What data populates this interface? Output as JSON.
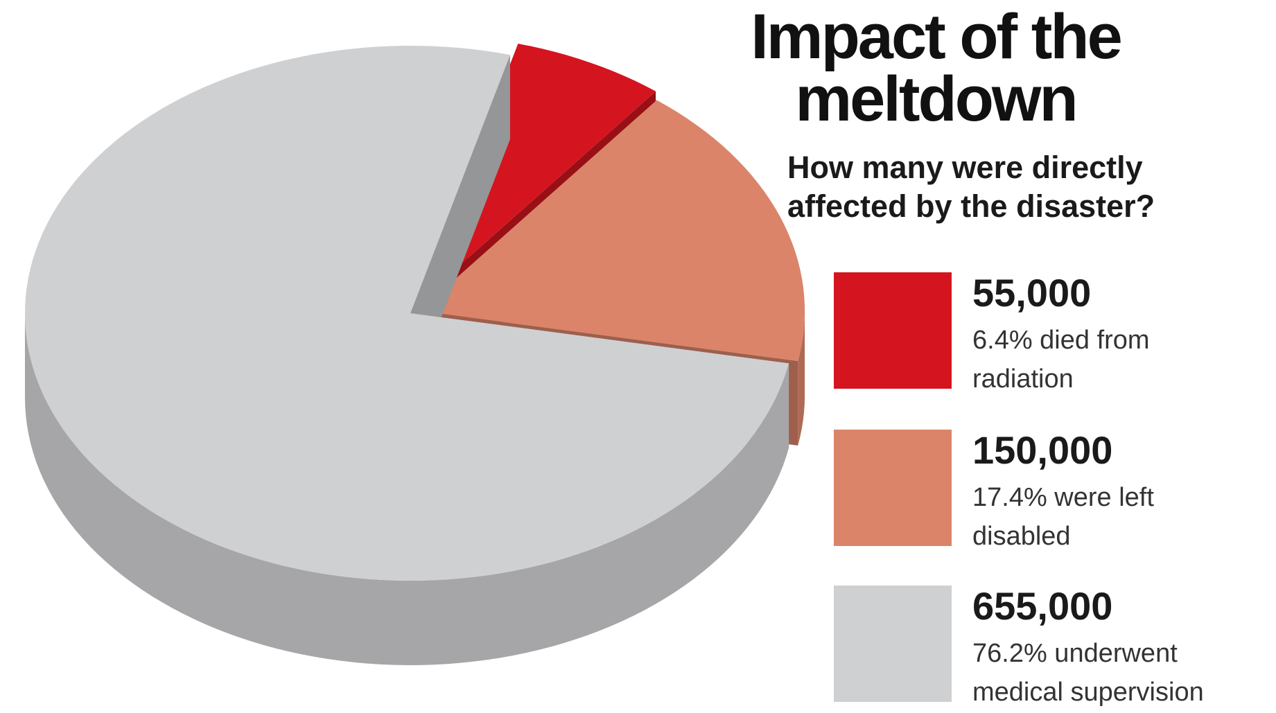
{
  "chart_data": {
    "type": "pie",
    "title": [
      "Impact of the",
      "meltdown"
    ],
    "subtitle": [
      "How many were directly",
      "affected by the disaster?"
    ],
    "categories": [
      [
        "6.4% died from",
        "radiation"
      ],
      [
        "17.4% were left",
        "disabled"
      ],
      [
        "76.2% underwent",
        "medical supervision"
      ]
    ],
    "values": [
      55000,
      150000,
      655000
    ],
    "value_labels": [
      "55,000",
      "150,000",
      "655,000"
    ],
    "colors": [
      "#d4151f",
      "#db846a",
      "#cfd0d2"
    ]
  }
}
